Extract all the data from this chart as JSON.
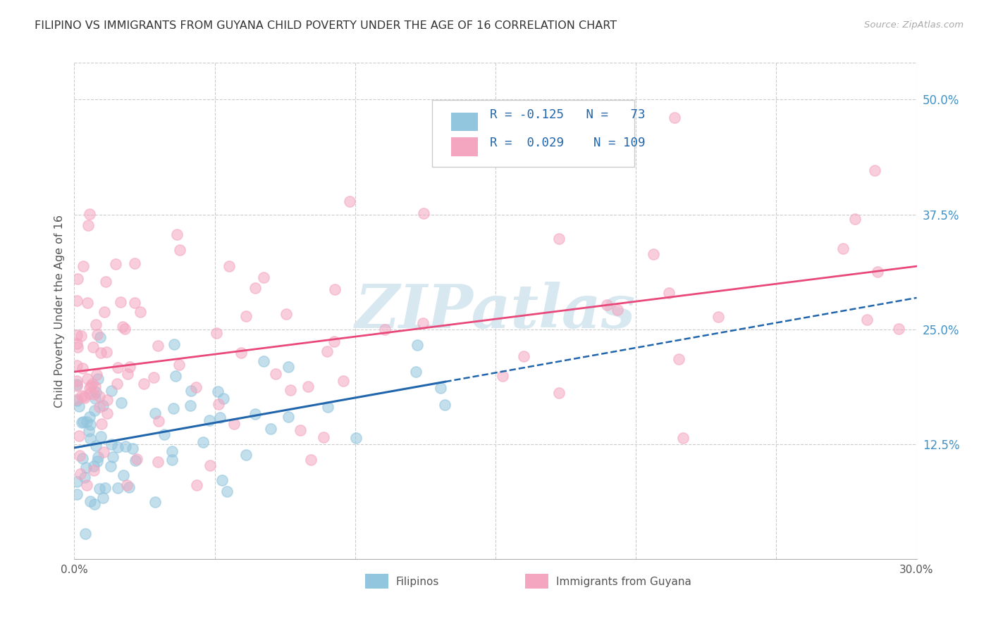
{
  "title": "FILIPINO VS IMMIGRANTS FROM GUYANA CHILD POVERTY UNDER THE AGE OF 16 CORRELATION CHART",
  "source": "Source: ZipAtlas.com",
  "ylabel": "Child Poverty Under the Age of 16",
  "ytick_labels": [
    "50.0%",
    "37.5%",
    "25.0%",
    "12.5%"
  ],
  "ytick_values": [
    0.5,
    0.375,
    0.25,
    0.125
  ],
  "xlim": [
    0.0,
    0.3
  ],
  "ylim": [
    0.0,
    0.54
  ],
  "legend_label1": "Filipinos",
  "legend_label2": "Immigrants from Guyana",
  "r1": -0.125,
  "n1": 73,
  "r2": 0.029,
  "n2": 109,
  "color_blue": "#92c5de",
  "color_pink": "#f4a6c0",
  "line_blue": "#2166ac",
  "line_pink": "#e8487a",
  "title_color": "#333333",
  "tick_color_right": "#4292c6",
  "background_color": "#ffffff",
  "grid_color": "#cccccc",
  "watermark_color": "#d8e8f0",
  "watermark_text": "ZIPatlas",
  "dot_size": 120,
  "dot_alpha": 0.55,
  "dot_linewidth": 1.2
}
